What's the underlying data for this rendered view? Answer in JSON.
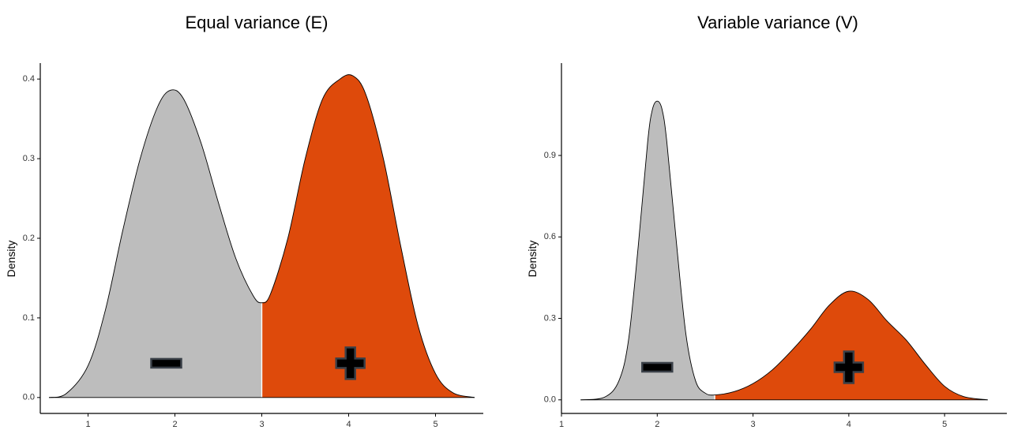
{
  "colors": {
    "negative": "#BDBDBD",
    "positive": "#DE4A0B",
    "outline": "#000000",
    "symbol_fill": "#000000",
    "symbol_edge": "#3A4048"
  },
  "icons": {
    "negative": "minus-icon",
    "positive": "plus-icon"
  },
  "chart_data": [
    {
      "type": "area",
      "title": "Equal variance (E)",
      "xlabel": "",
      "ylabel": "Density",
      "xlim": [
        0.45,
        5.55
      ],
      "ylim": [
        -0.02,
        0.42
      ],
      "x_ticks": [
        "1",
        "2",
        "3",
        "4",
        "5"
      ],
      "y_ticks": [
        "0.0",
        "0.1",
        "0.2",
        "0.3",
        "0.4"
      ],
      "split_x": 3.0,
      "density": {
        "x": [
          0.55,
          0.75,
          1.0,
          1.2,
          1.4,
          1.6,
          1.8,
          1.95,
          2.1,
          2.3,
          2.5,
          2.7,
          2.9,
          3.0,
          3.1,
          3.3,
          3.5,
          3.7,
          3.9,
          4.05,
          4.2,
          4.4,
          4.6,
          4.8,
          5.0,
          5.2,
          5.45
        ],
        "y": [
          0.0,
          0.005,
          0.04,
          0.11,
          0.21,
          0.3,
          0.365,
          0.386,
          0.375,
          0.32,
          0.245,
          0.175,
          0.128,
          0.119,
          0.13,
          0.2,
          0.3,
          0.375,
          0.4,
          0.404,
          0.38,
          0.3,
          0.19,
          0.09,
          0.03,
          0.006,
          0.0
        ]
      },
      "markers": [
        {
          "symbol": "-",
          "x": 1.9,
          "y": 0.043
        },
        {
          "symbol": "+",
          "x": 4.02,
          "y": 0.043
        }
      ],
      "grid": false,
      "legend": "none"
    },
    {
      "type": "area",
      "title": "Variable variance (V)",
      "xlabel": "",
      "ylabel": "Density",
      "xlim": [
        1.0,
        5.65
      ],
      "ylim": [
        -0.05,
        1.24
      ],
      "x_ticks": [
        "1",
        "2",
        "3",
        "4",
        "5"
      ],
      "y_ticks": [
        "0.0",
        "0.3",
        "0.6",
        "0.9"
      ],
      "split_x": 2.6,
      "density": {
        "x": [
          1.2,
          1.45,
          1.6,
          1.7,
          1.8,
          1.9,
          1.95,
          2.0,
          2.05,
          2.1,
          2.2,
          2.3,
          2.4,
          2.5,
          2.6,
          2.8,
          3.0,
          3.2,
          3.4,
          3.6,
          3.8,
          4.0,
          4.2,
          4.4,
          4.6,
          4.8,
          5.0,
          5.2,
          5.45
        ],
        "y": [
          0.0,
          0.01,
          0.07,
          0.22,
          0.56,
          0.95,
          1.07,
          1.1,
          1.07,
          0.95,
          0.58,
          0.24,
          0.07,
          0.025,
          0.018,
          0.03,
          0.06,
          0.11,
          0.18,
          0.26,
          0.35,
          0.4,
          0.37,
          0.29,
          0.22,
          0.13,
          0.05,
          0.012,
          0.0
        ]
      },
      "markers": [
        {
          "symbol": "-",
          "x": 2.0,
          "y": 0.12
        },
        {
          "symbol": "+",
          "x": 4.0,
          "y": 0.12
        }
      ],
      "grid": false,
      "legend": "none"
    }
  ]
}
